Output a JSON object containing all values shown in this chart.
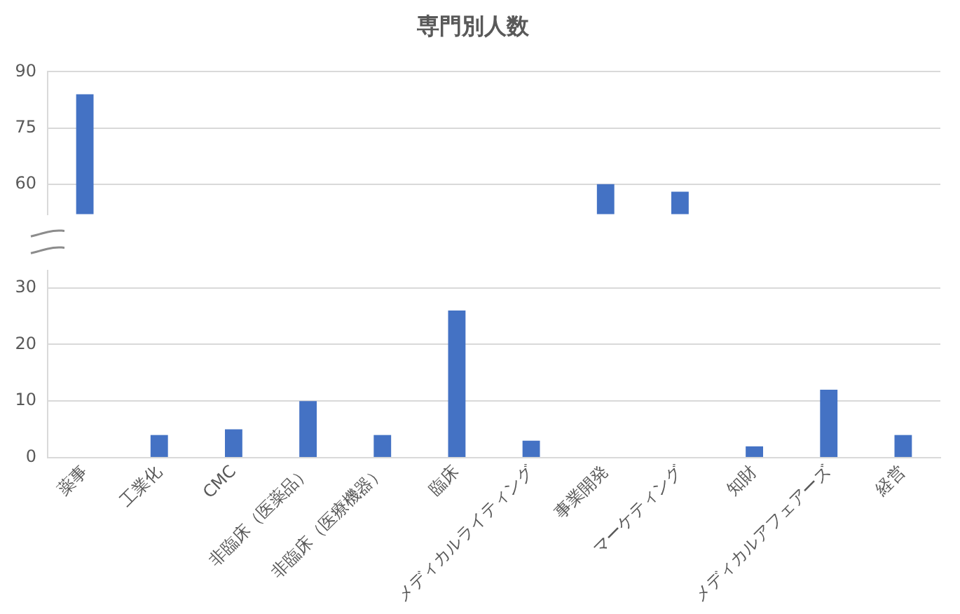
{
  "chart_data": [
    {
      "type": "bar",
      "title": "専門別人数",
      "categories": [
        null,
        null,
        null,
        null,
        null,
        null,
        null,
        null,
        null,
        null,
        null,
        null
      ],
      "values": [
        84,
        null,
        null,
        null,
        null,
        null,
        null,
        60,
        58,
        null,
        null,
        null
      ],
      "color": "#4472c4",
      "ylim": [
        52,
        90
      ],
      "yticks": [
        60,
        75,
        90
      ],
      "grid": "y",
      "tick_labels": "y",
      "legend": false
    },
    {
      "type": "bar",
      "categories": [
        "薬事",
        "工業化",
        "CMC",
        "非臨床（医薬品）",
        "非臨床（医療機器）",
        "臨床",
        "メディカルライティング",
        "事業開発",
        "マーケティング",
        "知財",
        "メディカルアフェアーズ",
        "経営"
      ],
      "values": [
        null,
        4,
        5,
        10,
        4,
        26,
        3,
        null,
        null,
        2,
        12,
        4
      ],
      "color": "#4472c4",
      "ylim": [
        0,
        33
      ],
      "yticks": [
        0,
        10,
        20,
        30
      ],
      "grid": "y",
      "legend": false
    }
  ]
}
